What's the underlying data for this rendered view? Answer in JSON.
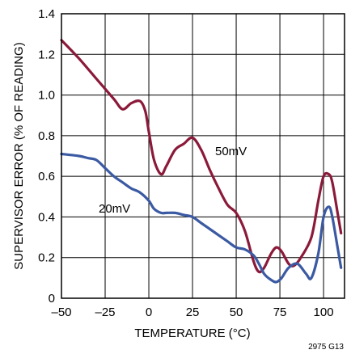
{
  "figure_id": "2975 G13",
  "chart_data": {
    "type": "line",
    "xlabel": "TEMPERATURE (°C)",
    "ylabel": "SUPERVISOR ERROR (% OF READING)",
    "xlim": [
      -50,
      112
    ],
    "ylim": [
      0,
      1.4
    ],
    "x_ticks": [
      -50,
      -25,
      0,
      25,
      50,
      75,
      100
    ],
    "x_tick_labels": [
      "–50",
      "–25",
      "0",
      "25",
      "50",
      "75",
      "100"
    ],
    "y_ticks": [
      0,
      0.2,
      0.4,
      0.6,
      0.8,
      1.0,
      1.2,
      1.4
    ],
    "y_tick_labels": [
      "0",
      "0.2",
      "0.4",
      "0.6",
      "0.8",
      "1.0",
      "1.2",
      "1.4"
    ],
    "grid": true,
    "series": [
      {
        "name": "50mV",
        "color": "#8b1a3a",
        "x": [
          -50,
          -40,
          -30,
          -20,
          -15,
          -10,
          -5,
          -2,
          0,
          3,
          7,
          10,
          15,
          20,
          25,
          30,
          35,
          40,
          45,
          50,
          55,
          60,
          63,
          66,
          70,
          73,
          76,
          80,
          83,
          87,
          93,
          97,
          100,
          103,
          105,
          108,
          110
        ],
        "values": [
          1.27,
          1.18,
          1.08,
          0.98,
          0.93,
          0.96,
          0.97,
          0.92,
          0.82,
          0.68,
          0.61,
          0.65,
          0.73,
          0.76,
          0.79,
          0.73,
          0.63,
          0.54,
          0.46,
          0.42,
          0.33,
          0.18,
          0.13,
          0.15,
          0.22,
          0.25,
          0.23,
          0.17,
          0.16,
          0.2,
          0.3,
          0.48,
          0.6,
          0.61,
          0.57,
          0.42,
          0.32
        ]
      },
      {
        "name": "20mV",
        "color": "#3b5aa3",
        "x": [
          -50,
          -40,
          -35,
          -30,
          -25,
          -20,
          -15,
          -10,
          -5,
          0,
          3,
          7,
          10,
          15,
          20,
          25,
          30,
          35,
          40,
          45,
          50,
          55,
          60,
          63,
          66,
          70,
          73,
          76,
          80,
          85,
          90,
          93,
          97,
          100,
          103,
          105,
          108,
          110
        ],
        "values": [
          0.71,
          0.7,
          0.69,
          0.68,
          0.64,
          0.6,
          0.57,
          0.54,
          0.52,
          0.48,
          0.44,
          0.42,
          0.42,
          0.42,
          0.41,
          0.4,
          0.37,
          0.34,
          0.31,
          0.28,
          0.25,
          0.24,
          0.21,
          0.17,
          0.12,
          0.09,
          0.08,
          0.1,
          0.15,
          0.17,
          0.12,
          0.1,
          0.22,
          0.4,
          0.45,
          0.4,
          0.25,
          0.15
        ]
      }
    ]
  }
}
